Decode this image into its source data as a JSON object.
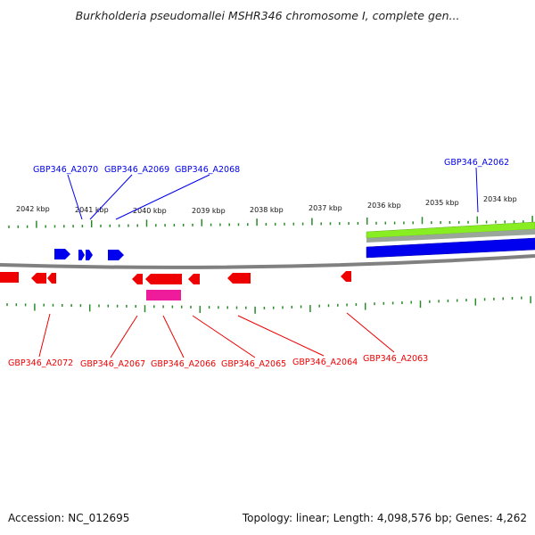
{
  "title": "Burkholderia pseudomallei MSHR346 chromosome I, complete gen...",
  "footer": {
    "accession": "Accession: NC_012695",
    "summary": "Topology: linear; Length: 4,098,576 bp; Genes: 4,262"
  },
  "colors": {
    "forward_gene": "#0000ee",
    "reverse_gene": "#ee0000",
    "pink_feature": "#ee1b9a",
    "tick": "#2a8a2a",
    "backbone": "#808080",
    "green_track": "#88ee22",
    "gray_track": "#9aa69a"
  },
  "scale": {
    "labels": [
      "2042 kbp",
      "2041 kbp",
      "2040 kbp",
      "2039 kbp",
      "2038 kbp",
      "2037 kbp",
      "2036 kbp",
      "2035 kbp",
      "2034 kbp"
    ]
  },
  "forward_labels": [
    "GBP346_A2070",
    "GBP346_A2069",
    "GBP346_A2068",
    "GBP346_A2062"
  ],
  "reverse_labels": [
    "GBP346_A2072",
    "GBP346_A2067",
    "GBP346_A2066",
    "GBP346_A2065",
    "GBP346_A2064",
    "GBP346_A2063"
  ]
}
